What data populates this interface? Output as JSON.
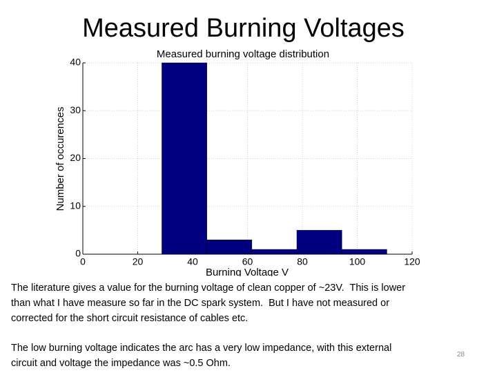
{
  "slide_title": "Measured Burning Voltages",
  "chart_data": {
    "type": "histogram",
    "title": "Measured burning voltage distribution",
    "x_label": "Burning Voltage V",
    "y_label": "Number of occurences",
    "bins": [
      28.8,
      45.2,
      61.6,
      78,
      94.4,
      110.8
    ],
    "counts": [
      40,
      3,
      1,
      5,
      1
    ],
    "color": "#000080",
    "xlim": [
      0,
      120
    ],
    "xticks": [
      0,
      20,
      40,
      60,
      80,
      100,
      120
    ],
    "ylim": [
      0,
      40
    ],
    "yticks": [
      0,
      10,
      20,
      30,
      40
    ],
    "grid": true
  },
  "paragraphs": [
    [
      "The literature gives a value for the burning voltage of clean copper of ~23V.  This is lower",
      "than what I have measure so far in the DC spark system.  But I have not measured or",
      "corrected for the short circuit resistance of cables etc."
    ],
    [
      "The low burning voltage indicates the arc has a very low impedance, with this external",
      "circuit and voltage the impedance was ~0.5 Ohm."
    ]
  ],
  "page_number": "28"
}
